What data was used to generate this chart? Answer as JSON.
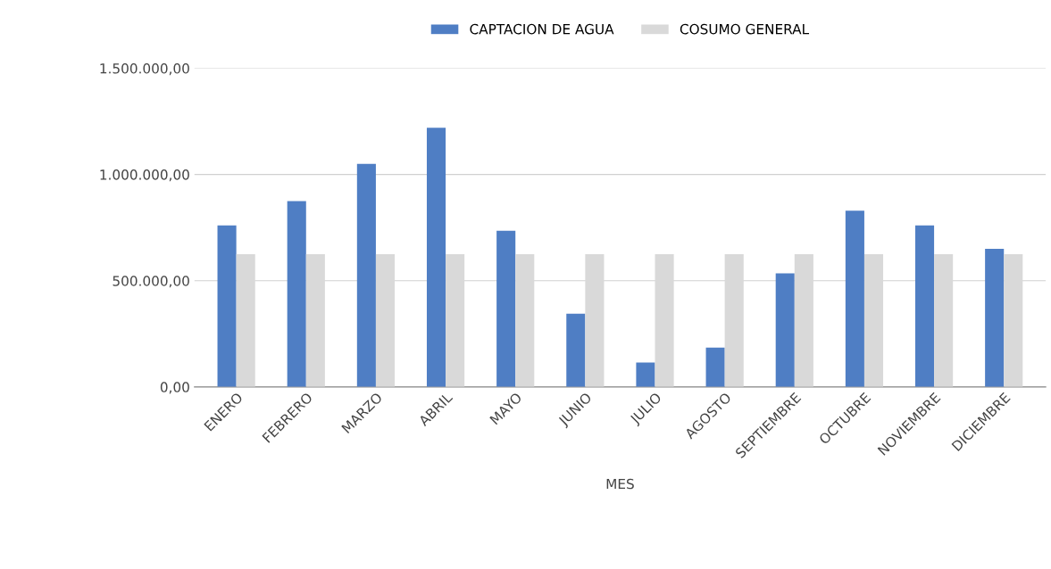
{
  "chart_data": {
    "type": "bar",
    "xlabel": "MES",
    "categories": [
      "ENERO",
      "FEBRERO",
      "MARZO",
      "ABRIL",
      "MAYO",
      "JUNIO",
      "JULIO",
      "AGOSTO",
      "SEPTIEMBRE",
      "OCTUBRE",
      "NOVIEMBRE",
      "DICIEMBRE"
    ],
    "series": [
      {
        "name": "CAPTACION DE AGUA",
        "color": "#4f7ec4",
        "values": [
          760000,
          875000,
          1050000,
          1220000,
          735000,
          345000,
          115000,
          185000,
          535000,
          830000,
          760000,
          650000
        ]
      },
      {
        "name": "COSUMO GENERAL",
        "color": "#d9d9d9",
        "values": [
          625000,
          625000,
          625000,
          625000,
          625000,
          625000,
          625000,
          625000,
          625000,
          625000,
          625000,
          625000
        ]
      }
    ],
    "ylim": [
      0,
      1500000
    ],
    "yticks": [
      {
        "value": 0,
        "label": "0,00"
      },
      {
        "value": 500000,
        "label": "500.000,00"
      },
      {
        "value": 1000000,
        "label": "1.000.000,00"
      },
      {
        "value": 1500000,
        "label": "1.500.000,00"
      }
    ],
    "grid": "y",
    "legend": "top"
  }
}
